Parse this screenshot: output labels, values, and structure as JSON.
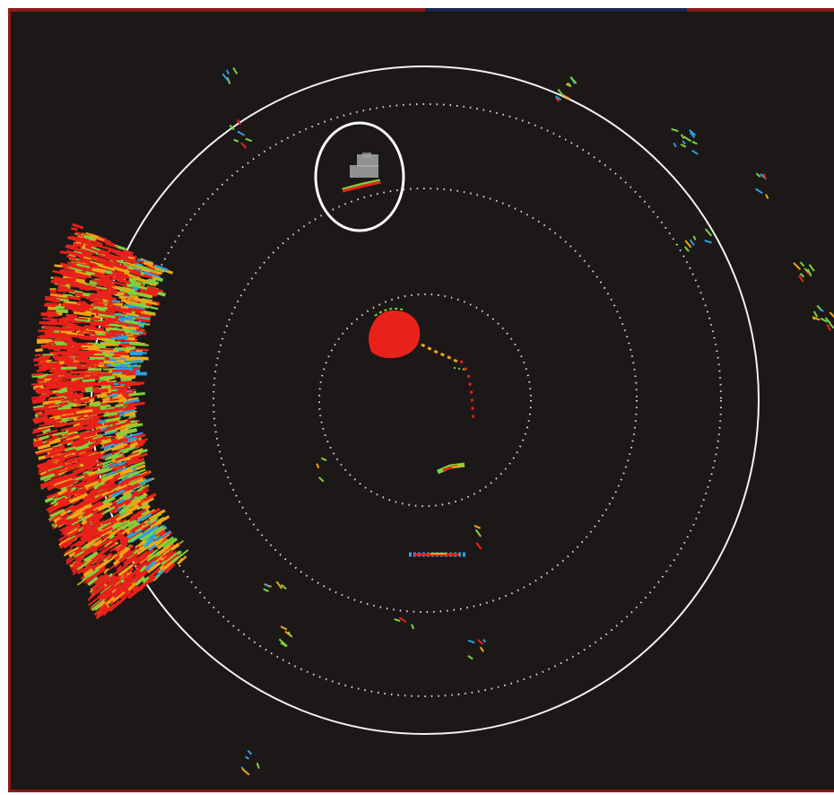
{
  "display": {
    "background_color": "#1b1817",
    "frame_color": "#8a1c1c",
    "title_bar_accent": "#1a2550"
  },
  "range_rings": {
    "ring_color": "#ffffff",
    "count_dotted": 4,
    "count_solid": 1
  },
  "echo_colors": {
    "strong": "#e8221a",
    "medium": "#f2a614",
    "weak": "#7fd23a",
    "faint": "#2aa0e0"
  },
  "targets": [
    {
      "id": "land-mass-west",
      "kind": "coastline-clutter"
    },
    {
      "id": "highlighted-target",
      "kind": "circled-echo-with-gray-tail"
    },
    {
      "id": "near-center-echo",
      "kind": "strong-echo"
    },
    {
      "id": "echo-south-1",
      "kind": "small-echo"
    },
    {
      "id": "echo-south-2",
      "kind": "small-echo"
    }
  ],
  "highlight": {
    "ring_color": "#ffffff",
    "tail_color": "#a7a7a7"
  }
}
